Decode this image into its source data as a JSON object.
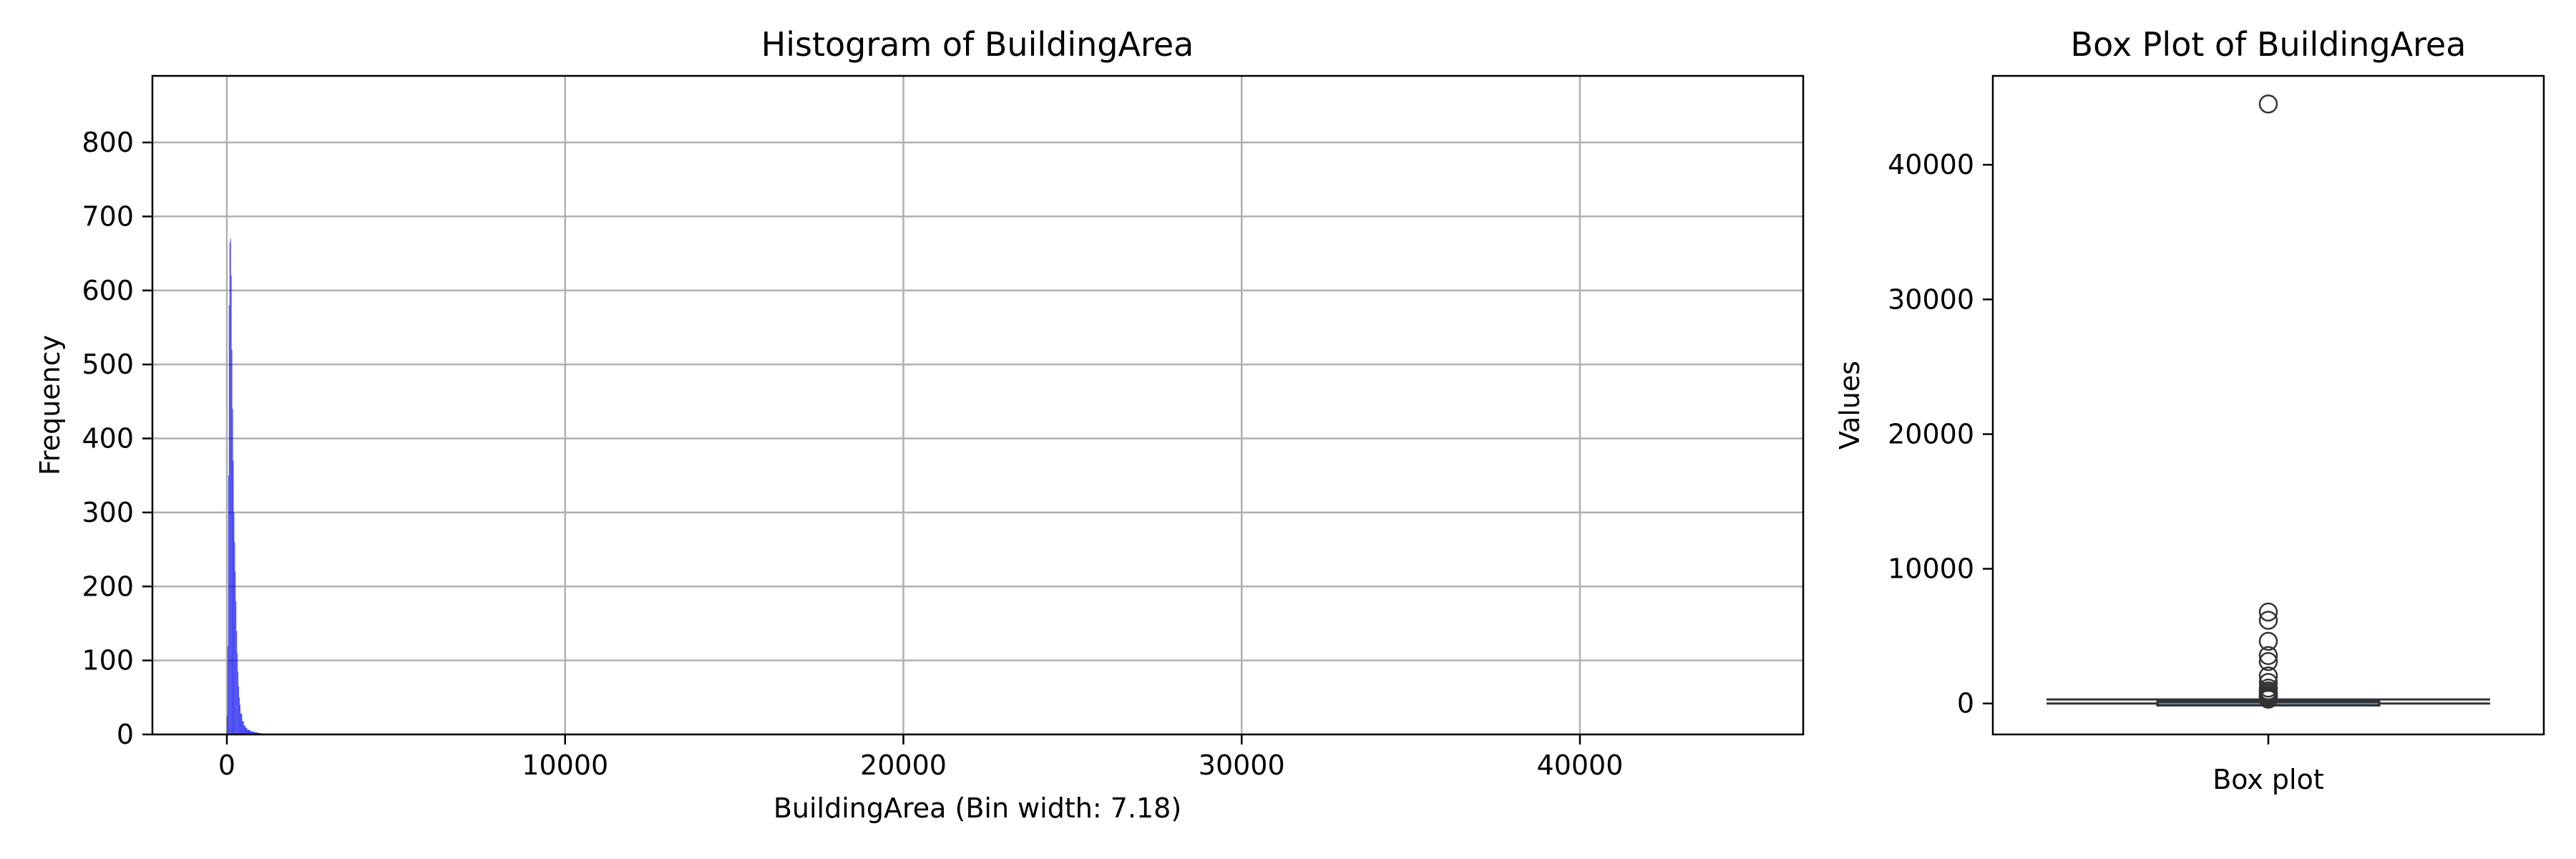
{
  "chart_data": [
    {
      "type": "histogram",
      "title": "Histogram of BuildingArea",
      "xlabel": "BuildingArea (Bin width: 7.18)",
      "ylabel": "Frequency",
      "xlim": [
        -2200,
        46600
      ],
      "ylim": [
        0,
        890
      ],
      "xticks": [
        0,
        10000,
        20000,
        30000,
        40000
      ],
      "yticks": [
        0,
        100,
        200,
        300,
        400,
        500,
        600,
        700,
        800
      ],
      "grid": true,
      "bar_color": "#0000ee",
      "bins": [
        {
          "x0": 0,
          "x1": 20,
          "count": 25
        },
        {
          "x0": 20,
          "x1": 40,
          "count": 120
        },
        {
          "x0": 40,
          "x1": 60,
          "count": 350
        },
        {
          "x0": 60,
          "x1": 80,
          "count": 580
        },
        {
          "x0": 80,
          "x1": 100,
          "count": 665
        },
        {
          "x0": 100,
          "x1": 120,
          "count": 670
        },
        {
          "x0": 120,
          "x1": 140,
          "count": 620
        },
        {
          "x0": 140,
          "x1": 160,
          "count": 520
        },
        {
          "x0": 160,
          "x1": 180,
          "count": 440
        },
        {
          "x0": 180,
          "x1": 200,
          "count": 370
        },
        {
          "x0": 200,
          "x1": 220,
          "count": 300
        },
        {
          "x0": 220,
          "x1": 240,
          "count": 260
        },
        {
          "x0": 240,
          "x1": 260,
          "count": 220
        },
        {
          "x0": 260,
          "x1": 280,
          "count": 180
        },
        {
          "x0": 280,
          "x1": 300,
          "count": 140
        },
        {
          "x0": 300,
          "x1": 320,
          "count": 110
        },
        {
          "x0": 320,
          "x1": 340,
          "count": 85
        },
        {
          "x0": 340,
          "x1": 360,
          "count": 65
        },
        {
          "x0": 360,
          "x1": 380,
          "count": 50
        },
        {
          "x0": 380,
          "x1": 400,
          "count": 40
        },
        {
          "x0": 400,
          "x1": 450,
          "count": 28
        },
        {
          "x0": 450,
          "x1": 500,
          "count": 18
        },
        {
          "x0": 500,
          "x1": 550,
          "count": 12
        },
        {
          "x0": 550,
          "x1": 600,
          "count": 9
        },
        {
          "x0": 600,
          "x1": 700,
          "count": 6
        },
        {
          "x0": 700,
          "x1": 800,
          "count": 4
        },
        {
          "x0": 800,
          "x1": 900,
          "count": 3
        },
        {
          "x0": 900,
          "x1": 1000,
          "count": 2
        }
      ]
    },
    {
      "type": "box",
      "title": "Box Plot of BuildingArea",
      "xlabel": "Box plot",
      "ylabel": "Values",
      "ylim": [
        -2300,
        46600
      ],
      "yticks": [
        0,
        10000,
        20000,
        30000,
        40000
      ],
      "grid": false,
      "box": {
        "whisker_low": 0,
        "q1": 93,
        "median": 126,
        "q3": 174,
        "whisker_high": 296
      },
      "outliers": [
        44515,
        6791,
        6178,
        4616,
        3558,
        3112,
        2045,
        1561,
        1143,
        934,
        792,
        643,
        535,
        450,
        380,
        320
      ]
    }
  ]
}
